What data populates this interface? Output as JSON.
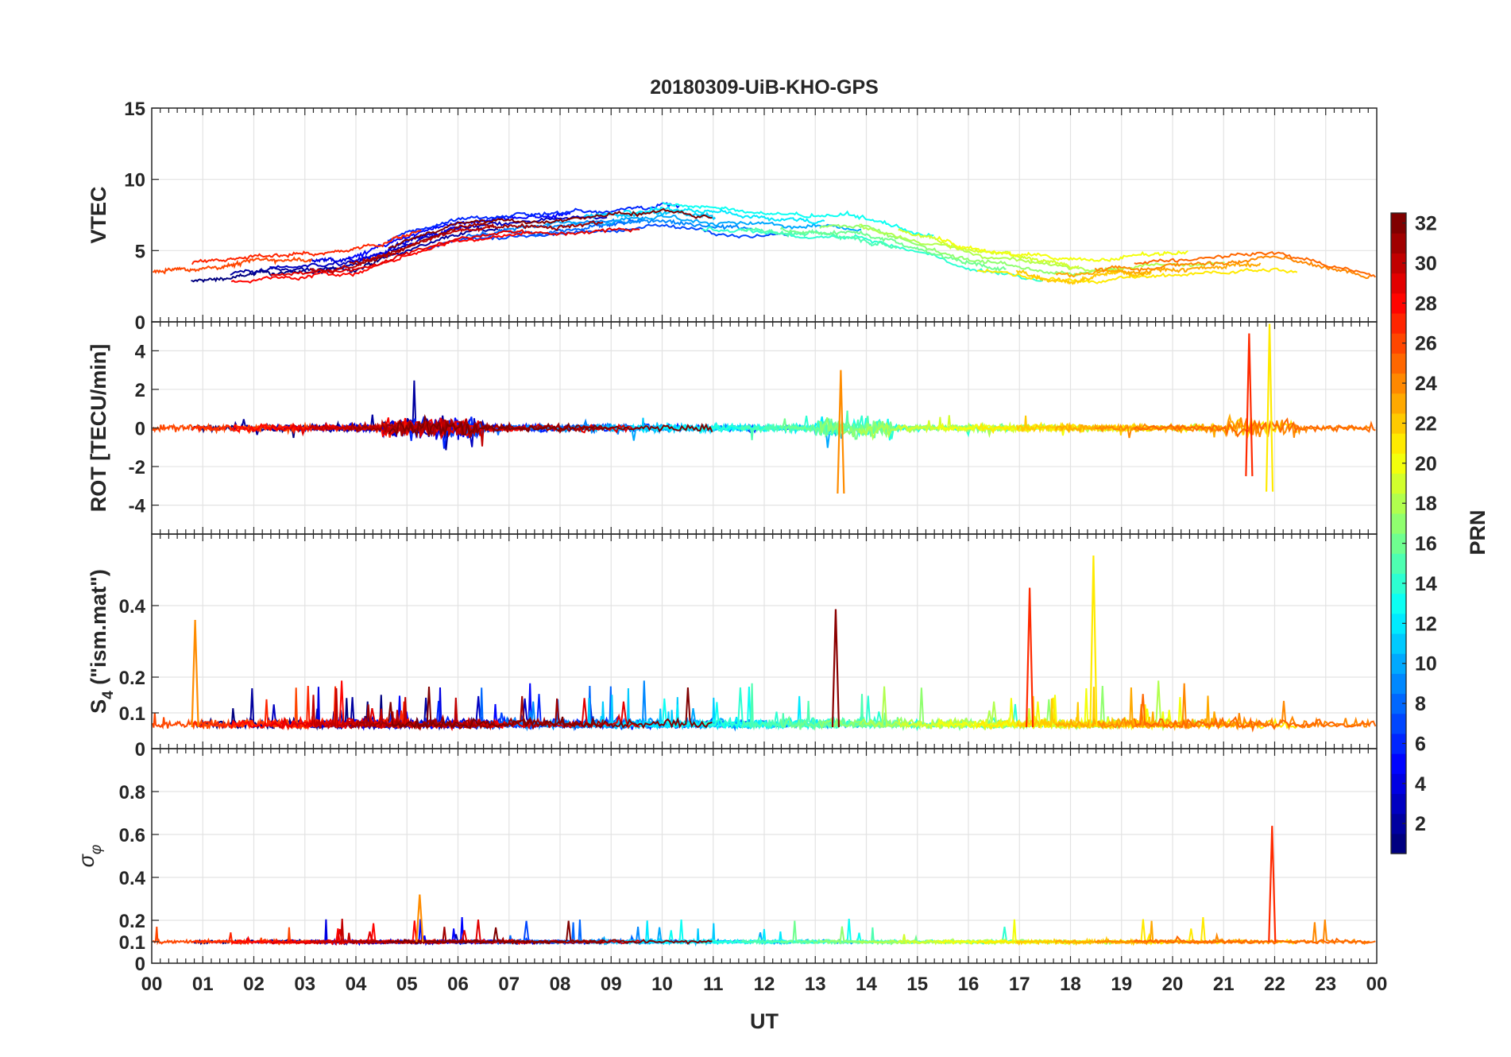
{
  "chart_data": {
    "title": "20180309-UiB-KHO-GPS",
    "type": "line",
    "x_axis": {
      "label": "UT",
      "range_hours": [
        0,
        24
      ],
      "tick_labels": [
        "00",
        "01",
        "02",
        "03",
        "04",
        "05",
        "06",
        "07",
        "08",
        "09",
        "10",
        "11",
        "12",
        "13",
        "14",
        "15",
        "16",
        "17",
        "18",
        "19",
        "20",
        "21",
        "22",
        "23",
        "00"
      ]
    },
    "grid": true,
    "panels": [
      {
        "id": "vtec",
        "ylabel": "VTEC",
        "ylim": [
          0,
          15
        ],
        "yticks": [
          0,
          5,
          10,
          15
        ],
        "ytick_labels": [
          "0",
          "5",
          "10",
          "15"
        ],
        "summary_points_hours": [
          0,
          2,
          4,
          6,
          8,
          10,
          12,
          14,
          16,
          18,
          20,
          22,
          24
        ],
        "summary_values": [
          3,
          3.8,
          4.2,
          6.5,
          7,
          7.5,
          6.8,
          6.5,
          4.5,
          3.5,
          4,
          4.5,
          3
        ]
      },
      {
        "id": "rot",
        "ylabel": "ROT [TECU/min]",
        "ylim": [
          -5.5,
          5.5
        ],
        "yticks": [
          -4,
          -2,
          0,
          2,
          4
        ],
        "ytick_labels": [
          "-4",
          "-2",
          "0",
          "2",
          "4"
        ],
        "notable_spikes": [
          {
            "hour": 13.5,
            "min": -3.4,
            "max": 3.0
          },
          {
            "hour": 21.5,
            "min": -2.5,
            "max": 4.9
          },
          {
            "hour": 21.9,
            "min": -3.3,
            "max": 5.4
          }
        ]
      },
      {
        "id": "s4",
        "ylabel": "S4 (\"ism.mat\")",
        "ylabel_main": "S",
        "ylabel_sub": "4",
        "ylabel_rest": " (\"ism.mat\")",
        "ylim": [
          0,
          0.6
        ],
        "yticks": [
          0,
          0.1,
          0.2,
          0.4
        ],
        "ytick_labels": [
          "0",
          "0.1",
          "0.2",
          "0.4"
        ],
        "baseline": 0.06,
        "notable_spikes": [
          {
            "hour": 0.85,
            "value": 0.36
          },
          {
            "hour": 17.2,
            "value": 0.45
          },
          {
            "hour": 18.45,
            "value": 0.54
          },
          {
            "hour": 13.4,
            "value": 0.39
          }
        ]
      },
      {
        "id": "sigma_phi",
        "ylabel": "σ φ",
        "ylabel_main": "σ",
        "ylabel_sub": "φ",
        "ylim": [
          0,
          1
        ],
        "yticks": [
          0,
          0.1,
          0.2,
          0.4,
          0.6,
          0.8
        ],
        "ytick_labels": [
          "0",
          "0.1",
          "0.2",
          "0.4",
          "0.6",
          "0.8"
        ],
        "baseline": 0.1,
        "notable_spikes": [
          {
            "hour": 5.25,
            "value": 0.32
          },
          {
            "hour": 21.95,
            "value": 0.64
          }
        ]
      }
    ],
    "colorbar": {
      "label": "PRN",
      "range": [
        1,
        32
      ],
      "ticks": [
        2,
        4,
        6,
        8,
        10,
        12,
        14,
        16,
        18,
        20,
        22,
        24,
        26,
        28,
        30,
        32
      ],
      "tick_labels": [
        "2",
        "4",
        "6",
        "8",
        "10",
        "12",
        "14",
        "16",
        "18",
        "20",
        "22",
        "24",
        "26",
        "28",
        "30",
        "32"
      ],
      "colormap": "jet"
    },
    "series_count": 32
  }
}
